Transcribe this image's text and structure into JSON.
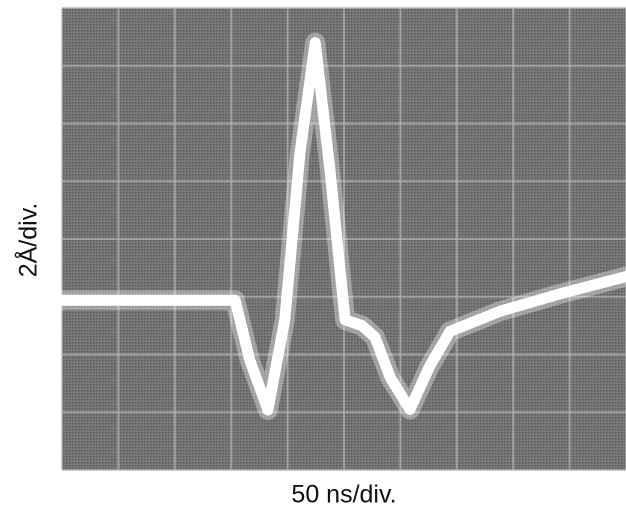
{
  "chart_data": {
    "type": "line",
    "x_label": "50 ns/div.",
    "y_label": "2Å/div.",
    "x": [
      0,
      3.07,
      3.33,
      3.65,
      3.95,
      4.22,
      4.49,
      4.75,
      5.02,
      5.32,
      5.55,
      5.82,
      6.17,
      6.52,
      6.88,
      7.77,
      8.83,
      10
    ],
    "values": [
      2.94,
      2.94,
      1.9,
      1.04,
      2.6,
      5.5,
      7.4,
      5.2,
      2.6,
      2.5,
      2.3,
      1.6,
      1.05,
      1.8,
      2.4,
      2.75,
      3.05,
      3.35
    ],
    "color": "#ffffff",
    "xlim": [
      0,
      10
    ],
    "ylim": [
      0,
      8
    ],
    "xticks": [
      0,
      1,
      2,
      3,
      4,
      5,
      6,
      7,
      8,
      9,
      10
    ],
    "yticks": [
      0,
      1,
      2,
      3,
      4,
      5,
      6,
      7,
      8
    ],
    "grid": true
  }
}
